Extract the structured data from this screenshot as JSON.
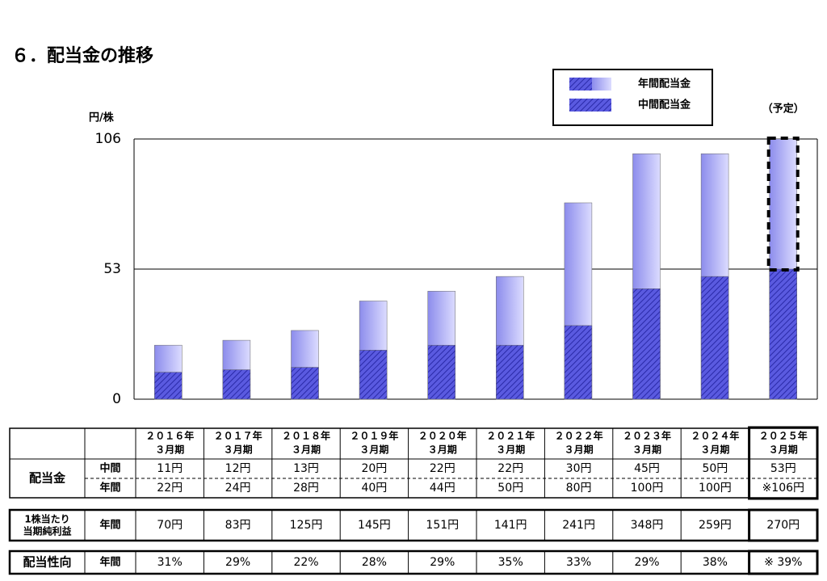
{
  "title": "６．配当金の推移",
  "chart_data": {
    "type": "bar",
    "y_label": "円/株",
    "annotation": "（予定）",
    "ylim": [
      0,
      106
    ],
    "yticks": [
      0,
      53,
      106
    ],
    "grid": true,
    "series": [
      {
        "name": "年間配当金",
        "color": "#aaaaf5",
        "values": [
          22,
          24,
          28,
          40,
          44,
          50,
          80,
          100,
          100,
          106
        ]
      },
      {
        "name": "中間配当金",
        "color": "#4a4ad8",
        "values": [
          11,
          12,
          13,
          20,
          22,
          22,
          30,
          45,
          50,
          53
        ]
      }
    ]
  },
  "table": {
    "columns": [
      [
        "２０１６年",
        "３月期"
      ],
      [
        "２０１７年",
        "３月期"
      ],
      [
        "２０１８年",
        "３月期"
      ],
      [
        "２０１９年",
        "３月期"
      ],
      [
        "２０２０年",
        "３月期"
      ],
      [
        "２０２１年",
        "３月期"
      ],
      [
        "２０２２年",
        "３月期"
      ],
      [
        "２０２３年",
        "３月期"
      ],
      [
        "２０２４年",
        "３月期"
      ],
      [
        "２０２５年",
        "３月期"
      ]
    ],
    "dividend": {
      "label": "配当金",
      "interim": {
        "label": "中間",
        "cells": [
          "11円",
          "12円",
          "13円",
          "20円",
          "22円",
          "22円",
          "30円",
          "45円",
          "50円",
          "53円"
        ]
      },
      "annual": {
        "label": "年間",
        "cells": [
          "22円",
          "24円",
          "28円",
          "40円",
          "44円",
          "50円",
          "80円",
          "100円",
          "100円",
          "※106円"
        ]
      }
    },
    "eps": {
      "label": [
        "1株当たり",
        "当期純利益"
      ],
      "period": "年間",
      "cells": [
        "70円",
        "83円",
        "125円",
        "145円",
        "151円",
        "141円",
        "241円",
        "348円",
        "259円",
        "270円"
      ]
    },
    "payout": {
      "label": "配当性向",
      "period": "年間",
      "cells": [
        "31%",
        "29%",
        "22%",
        "28%",
        "29%",
        "35%",
        "33%",
        "29%",
        "38%",
        "※ 39%"
      ]
    }
  }
}
